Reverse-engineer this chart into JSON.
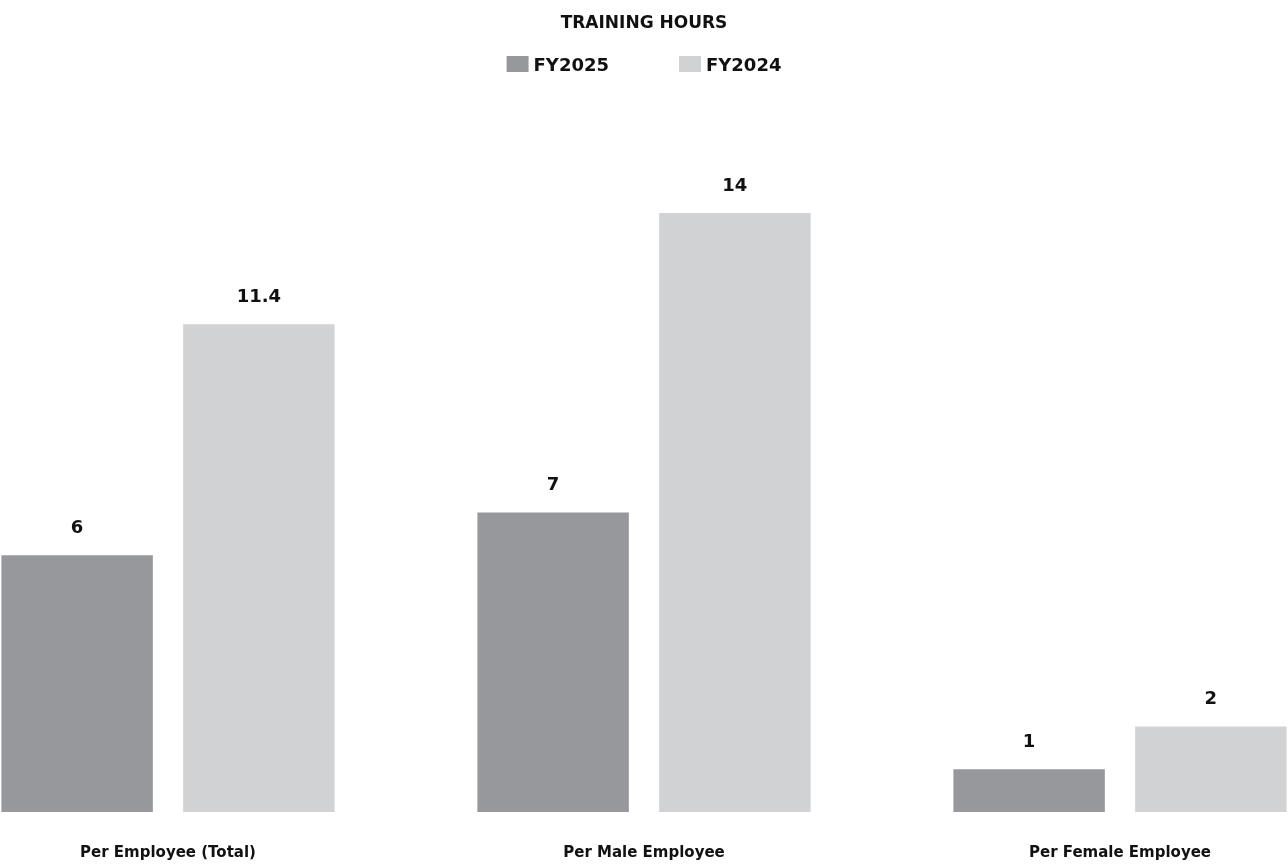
{
  "chart_data": {
    "type": "bar",
    "title": "TRAINING HOURS",
    "categories": [
      "Per Employee (Total)",
      "Per Male Employee",
      "Per Female Employee"
    ],
    "series": [
      {
        "name": "FY2025",
        "color": "#97989c",
        "values": [
          6,
          7,
          1
        ]
      },
      {
        "name": "FY2024",
        "color": "#d1d2d4",
        "values": [
          11.4,
          14,
          2
        ]
      }
    ],
    "data_labels": true,
    "legend": "top"
  }
}
